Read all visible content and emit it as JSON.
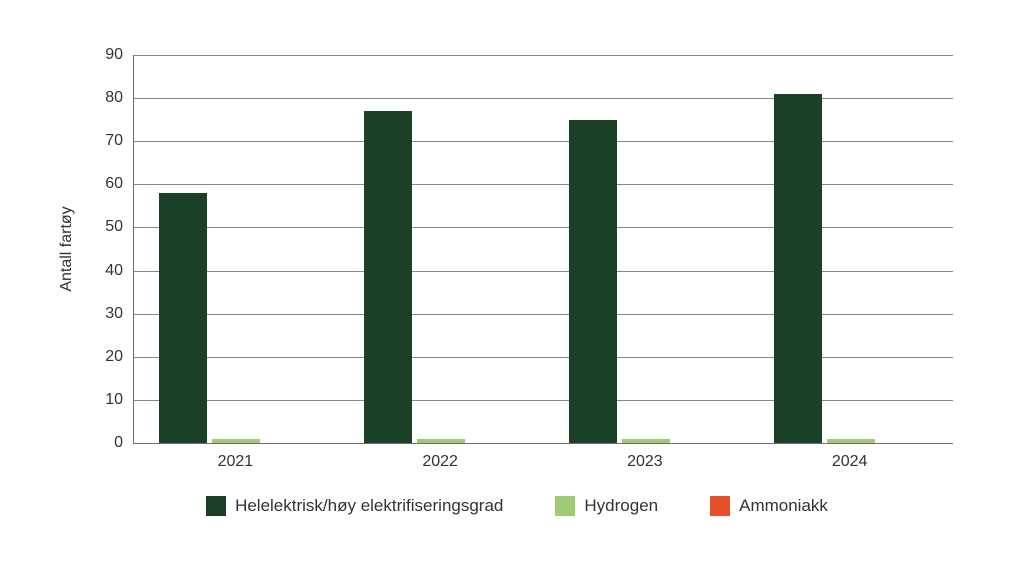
{
  "chart_data": {
    "type": "bar",
    "categories": [
      "2021",
      "2022",
      "2023",
      "2024"
    ],
    "series": [
      {
        "name": "Helelektrisk/høy elektrifiseringsgrad",
        "color": "#1a4126",
        "values": [
          58,
          77,
          75,
          81
        ]
      },
      {
        "name": "Hydrogen",
        "color": "#9fcb73",
        "values": [
          1,
          1,
          1,
          1
        ]
      },
      {
        "name": "Ammoniakk",
        "color": "#e4502b",
        "values": [
          0,
          0,
          0,
          0
        ]
      }
    ],
    "title": "",
    "xlabel": "",
    "ylabel": "Antall fartøy",
    "ylim": [
      0,
      90
    ],
    "yticks": [
      0,
      10,
      20,
      30,
      40,
      50,
      60,
      70,
      80,
      90
    ],
    "grid": true,
    "legend_position": "bottom",
    "colors": {
      "gridline": "#8a8a8a",
      "axis": "#6e6e6e",
      "text": "#333333",
      "background": "#ffffff"
    }
  }
}
